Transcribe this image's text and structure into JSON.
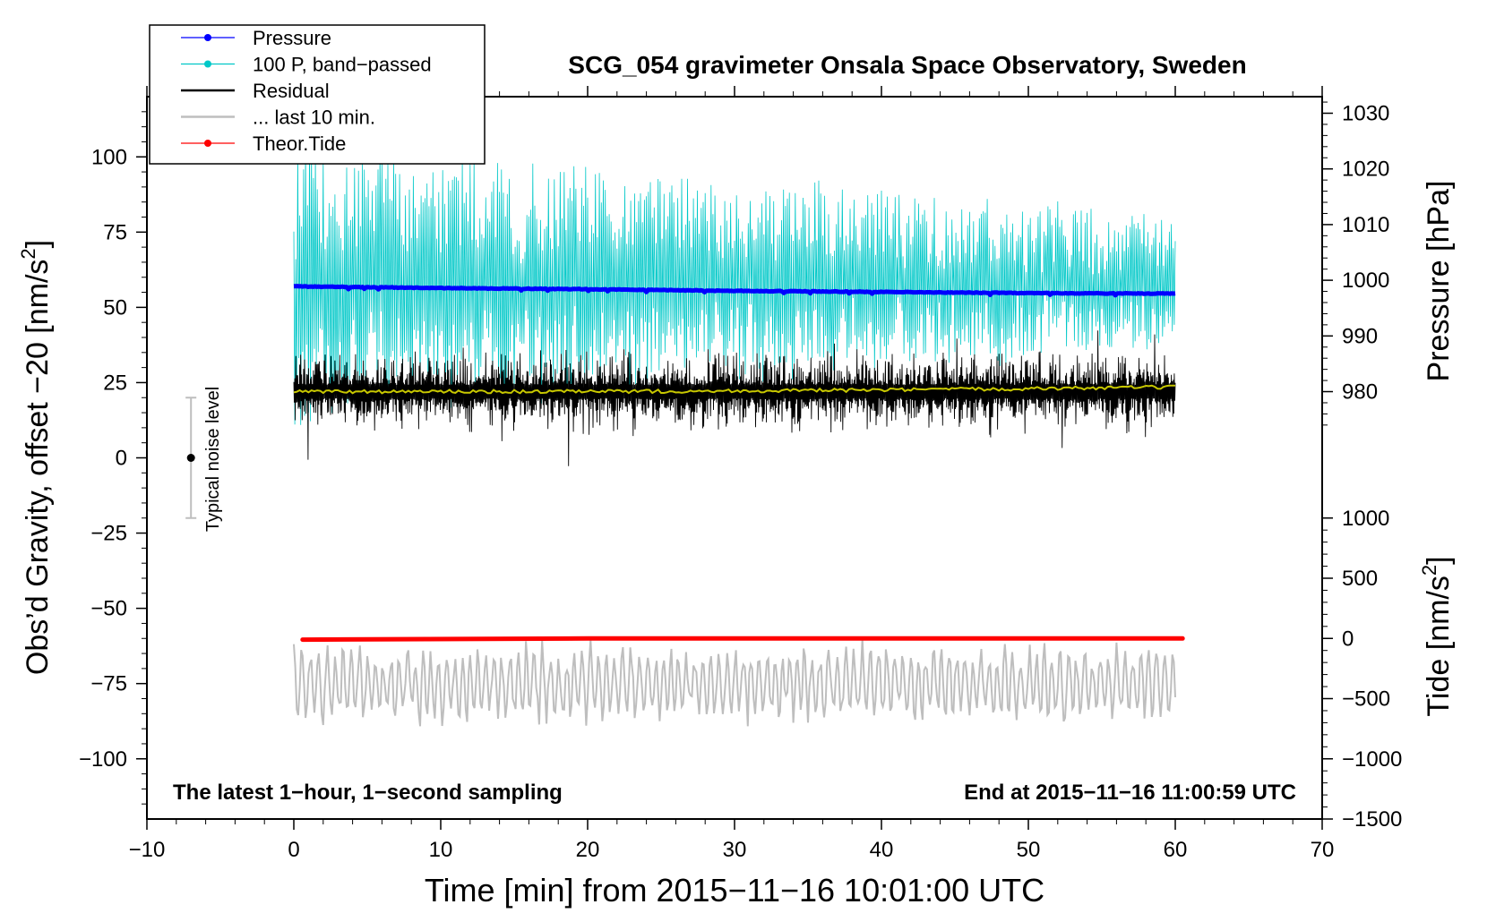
{
  "chart_data": {
    "type": "line",
    "title": "SCG_054 gravimeter Onsala Space Observatory, Sweden",
    "xlabel": "Time [min] from 2015−11−16 10:01:00 UTC",
    "ylabel": "Obs’d Gravity, offset −20 [nm/s",
    "ylabel_sup": "2",
    "ylabel_end": "]",
    "y2label": "Pressure [hPa]",
    "y3label": "Tide [nm/s",
    "y3label_sup": "2",
    "y3label_end": "]",
    "xlim": [
      -10,
      70
    ],
    "ylim": [
      -120,
      120
    ],
    "x_ticks": [
      -10,
      0,
      10,
      20,
      30,
      40,
      50,
      60,
      70
    ],
    "x_tick_labels": [
      "−10",
      "0",
      "10",
      "20",
      "30",
      "40",
      "50",
      "60",
      "70"
    ],
    "y_ticks": [
      -100,
      -75,
      -50,
      -25,
      0,
      25,
      50,
      75,
      100
    ],
    "y_tick_labels": [
      "−100",
      "−75",
      "−50",
      "−25",
      "0",
      "25",
      "50",
      "75",
      "100"
    ],
    "pressure_axis": {
      "data_at_y0": 980,
      "y0": 22,
      "data_at_y1": 1030,
      "y1": 114.5,
      "ticks": [
        980,
        990,
        1000,
        1010,
        1020,
        1030
      ],
      "tick_labels": [
        "980",
        "990",
        "1000",
        "1010",
        "1020",
        "1030"
      ]
    },
    "tide_axis": {
      "data_at_y0": -1500,
      "y0": -120,
      "data_at_y1": 1000,
      "y1": -20,
      "ticks": [
        -1500,
        -1000,
        -500,
        0,
        500,
        1000
      ],
      "tick_labels": [
        "−1500",
        "−1000",
        "−500",
        "0",
        "500",
        "1000"
      ]
    },
    "annotations": {
      "left": "The latest 1−hour, 1−second sampling",
      "right": "End at 2015−11−16 11:00:59 UTC",
      "noise": "Typical noise level"
    },
    "noise_bar": {
      "x": -7,
      "center": 0,
      "half_range": 20
    },
    "legend": [
      {
        "label": "Pressure",
        "color": "#0000ff",
        "marker": true
      },
      {
        "label": "100 P, band−passed",
        "color": "#00c8c8",
        "marker": true
      },
      {
        "label": "Residual",
        "color": "#000000",
        "marker": false
      },
      {
        "label": "... last 10 min.",
        "color": "#bebebe",
        "marker": false
      },
      {
        "label": "Theor.Tide",
        "color": "#ff0000",
        "marker": true
      }
    ],
    "series": [
      {
        "name": "Pressure",
        "axis": "pressure",
        "color": "#0000ff",
        "x": [
          0,
          10,
          20,
          30,
          40,
          50,
          60
        ],
        "values": [
          998.9,
          998.6,
          998.4,
          998.1,
          997.9,
          997.7,
          997.6
        ]
      },
      {
        "name": "100 P, band−passed",
        "axis": "left",
        "color": "#00c8c8",
        "x": [
          0,
          60
        ],
        "mean": 58,
        "amplitude_start": 45,
        "amplitude_end": 22
      },
      {
        "name": "Residual",
        "axis": "left",
        "color": "#000000",
        "x": [
          0,
          60
        ],
        "mean": 22,
        "amplitude": 15
      },
      {
        "name": "Residual (smoothed)",
        "axis": "left",
        "color": "#c8c800",
        "x": [
          0,
          20,
          40,
          60
        ],
        "values": [
          22,
          22,
          22.5,
          23.5
        ]
      },
      {
        "name": "... last 10 min.",
        "axis": "left",
        "color": "#bebebe",
        "x": [
          0,
          60
        ],
        "mean": -75,
        "amplitude": 15
      },
      {
        "name": "Theor.Tide",
        "axis": "tide",
        "color": "#ff0000",
        "x": [
          0.6,
          20,
          40,
          60.5
        ],
        "values": [
          -10,
          0,
          0,
          0
        ]
      }
    ]
  }
}
